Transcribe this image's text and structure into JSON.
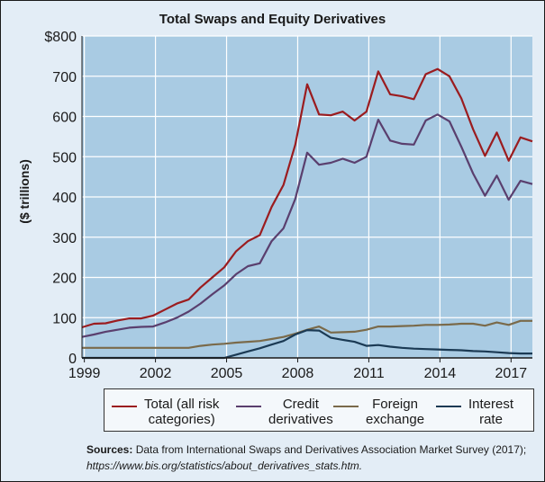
{
  "chart_data": {
    "type": "line",
    "title": "Total Swaps and Equity Derivatives",
    "ylabel": "($ trillions)",
    "xlabel": "",
    "xlim": [
      1998.9,
      2017.9
    ],
    "ylim": [
      0,
      800
    ],
    "x_ticks": [
      "1999",
      "2002",
      "2005",
      "2008",
      "2011",
      "2014",
      "2017"
    ],
    "y_ticks": [
      "$800",
      "700",
      "600",
      "500",
      "400",
      "300",
      "200",
      "100",
      "0"
    ],
    "grid": true,
    "x": [
      1998.9,
      1999.4,
      1999.9,
      2000.4,
      2000.9,
      2001.4,
      2001.9,
      2002.4,
      2002.9,
      2003.4,
      2003.9,
      2004.4,
      2004.9,
      2005.4,
      2005.9,
      2006.4,
      2006.9,
      2007.4,
      2007.9,
      2008.4,
      2008.9,
      2009.4,
      2009.9,
      2010.4,
      2010.9,
      2011.4,
      2011.9,
      2012.4,
      2012.9,
      2013.4,
      2013.9,
      2014.4,
      2014.9,
      2015.4,
      2015.9,
      2016.4,
      2016.9,
      2017.4,
      2017.9
    ],
    "series": [
      {
        "name": "Total (all risk categories)",
        "color": "#9b1c1f",
        "values": [
          76,
          85,
          86,
          93,
          98,
          98,
          105,
          120,
          135,
          145,
          175,
          200,
          225,
          265,
          290,
          305,
          375,
          430,
          530,
          680,
          605,
          603,
          612,
          590,
          612,
          712,
          655,
          650,
          643,
          705,
          718,
          700,
          645,
          568,
          502,
          560,
          490,
          548,
          538
        ]
      },
      {
        "name": "Credit derivatives",
        "color": "#5a3f6e",
        "values": [
          52,
          58,
          65,
          70,
          75,
          77,
          78,
          88,
          100,
          115,
          135,
          158,
          180,
          208,
          228,
          235,
          290,
          322,
          395,
          510,
          480,
          485,
          495,
          485,
          500,
          592,
          540,
          532,
          530,
          590,
          605,
          588,
          525,
          458,
          403,
          453,
          393,
          440,
          432
        ]
      },
      {
        "name": "Foreign exchange",
        "color": "#7a6a4a",
        "values": [
          25,
          25,
          25,
          25,
          25,
          25,
          25,
          25,
          25,
          25,
          30,
          33,
          35,
          38,
          40,
          42,
          47,
          52,
          60,
          70,
          78,
          63,
          64,
          65,
          70,
          78,
          78,
          79,
          80,
          82,
          82,
          83,
          85,
          85,
          80,
          88,
          82,
          92,
          92
        ]
      },
      {
        "name": "Interest rate",
        "color": "#1b3a54",
        "values": [
          0,
          0,
          0,
          0,
          0,
          0,
          0,
          0,
          0,
          0,
          0,
          0,
          0,
          8,
          16,
          24,
          33,
          42,
          58,
          69,
          68,
          50,
          45,
          40,
          30,
          32,
          28,
          25,
          23,
          22,
          21,
          20,
          19,
          17,
          16,
          14,
          12,
          11,
          11
        ]
      }
    ],
    "legend_position": "bottom"
  },
  "legend": [
    {
      "line1": "Total (all risk",
      "line2": "categories)",
      "color": "#9b1c1f"
    },
    {
      "line1": "Credit",
      "line2": "derivatives",
      "color": "#5a3f6e"
    },
    {
      "line1": "Foreign",
      "line2": "exchange",
      "color": "#7a6a4a"
    },
    {
      "line1": "Interest",
      "line2": "rate",
      "color": "#1b3a54"
    }
  ],
  "sources": {
    "label": "Sources:",
    "text": "Data from International Swaps and Derivatives Association Market Survey (2017);",
    "url": "https://www.bis.org/statistics/about_derivatives_stats.htm."
  },
  "colors": {
    "plot_background": "#a9cbe3",
    "panel_background": "#e3edf6",
    "gridline": "#ffffff"
  }
}
